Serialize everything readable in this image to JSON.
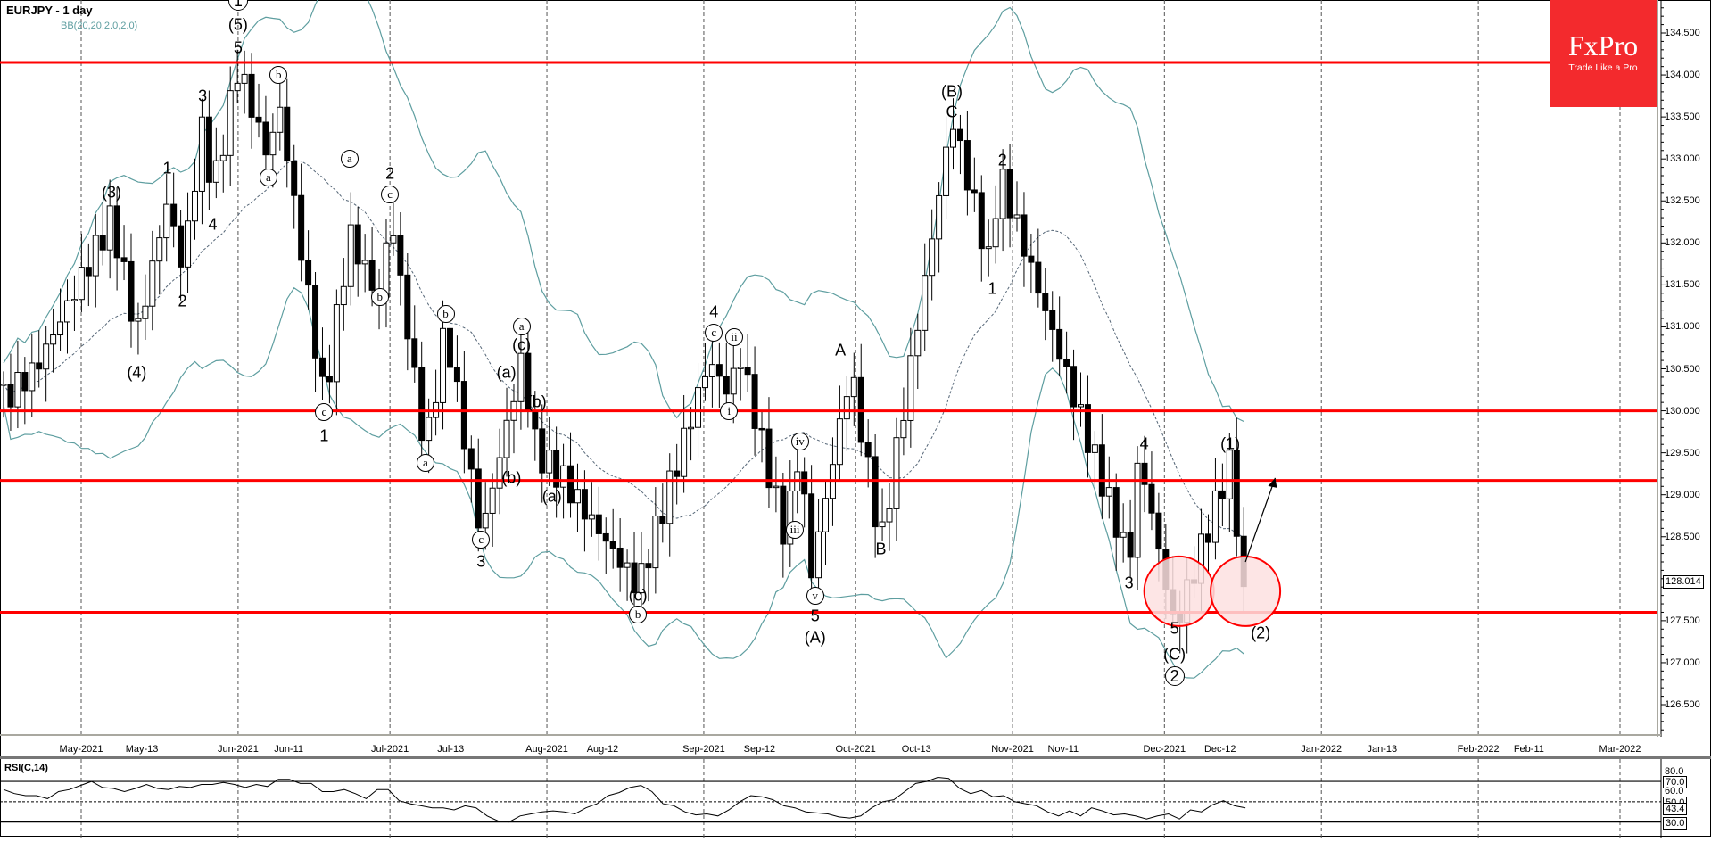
{
  "header": {
    "title": "EURJPY - 1 day",
    "indicator": "BB(20,20,2.0,2.0)"
  },
  "logo": {
    "brand": "FxPro",
    "tagline": "Trade Like a Pro",
    "color": "#f32a2d"
  },
  "price_axis": {
    "labels": [
      "134.500",
      "134.000",
      "133.500",
      "133.000",
      "132.500",
      "132.000",
      "131.500",
      "131.000",
      "130.500",
      "130.000",
      "129.500",
      "129.000",
      "128.500",
      "127.500",
      "127.000",
      "126.500"
    ],
    "last_price": "128.014"
  },
  "time_axis": {
    "labels": [
      "May-2021",
      "May-13",
      "Jun-2021",
      "Jun-11",
      "Jul-2021",
      "Jul-13",
      "Aug-2021",
      "Aug-12",
      "Sep-2021",
      "Sep-12",
      "Oct-2021",
      "Oct-13",
      "Nov-2021",
      "Nov-11",
      "Dec-2021",
      "Dec-12",
      "Jan-2022",
      "Jan-13",
      "Feb-2022",
      "Feb-11",
      "Mar-2022"
    ]
  },
  "rsi": {
    "title": "RSI(C,14)",
    "labels": [
      "80.0",
      "70.0",
      "60.0",
      "50.0",
      "43.4",
      "30.0"
    ],
    "current": "43.4"
  },
  "colors": {
    "level_line": "#ff0000",
    "bollinger": "#5e9ea0",
    "bull_candle": "#ffffff",
    "bear_candle": "#000000",
    "highlight_circle_fill": "#fde0e0"
  },
  "chart_data": [
    {
      "type": "candlestick",
      "title": "EURJPY - 1 day",
      "subtitle": "BB(20,20,2.0,2.0)",
      "xlabel": "",
      "ylabel": "",
      "ylim": [
        126.1,
        134.9
      ],
      "x_range": [
        "2021-04-20",
        "2022-03-10"
      ],
      "grid": "vertical dashed at month starts",
      "horizontal_levels": [
        134.15,
        130.0,
        129.17,
        127.6
      ],
      "last_price": 128.014,
      "key_points": [
        {
          "date": "2021-05-07",
          "price": 132.3,
          "label": "(3)"
        },
        {
          "date": "2021-05-12",
          "price": 130.9,
          "label": "(4)"
        },
        {
          "date": "2021-05-18",
          "price": 132.5,
          "label": "1"
        },
        {
          "date": "2021-05-21",
          "price": 131.7,
          "label": "2"
        },
        {
          "date": "2021-05-25",
          "price": 133.4,
          "label": "3"
        },
        {
          "date": "2021-05-27",
          "price": 132.6,
          "label": "4"
        },
        {
          "date": "2021-06-01",
          "price": 134.1,
          "label": "5 / (5) / ①"
        },
        {
          "date": "2021-06-07",
          "price": 133.0,
          "label": "a"
        },
        {
          "date": "2021-06-09",
          "price": 133.7,
          "label": "b"
        },
        {
          "date": "2021-06-18",
          "price": 130.1,
          "label": "c / 1"
        },
        {
          "date": "2021-06-23",
          "price": 132.1,
          "label": "a"
        },
        {
          "date": "2021-06-29",
          "price": 131.3,
          "label": "b"
        },
        {
          "date": "2021-07-01",
          "price": 132.4,
          "label": "c / 2"
        },
        {
          "date": "2021-07-08",
          "price": 129.5,
          "label": "a"
        },
        {
          "date": "2021-07-12",
          "price": 131.0,
          "label": "b"
        },
        {
          "date": "2021-07-19",
          "price": 128.5,
          "label": "c / 3"
        },
        {
          "date": "2021-07-27",
          "price": 130.6,
          "label": "(a) a (c)"
        },
        {
          "date": "2021-07-30",
          "price": 129.5,
          "label": "(b)"
        },
        {
          "date": "2021-08-04",
          "price": 129.2,
          "label": "(a)"
        },
        {
          "date": "2021-08-19",
          "price": 127.9,
          "label": "(c) / b"
        },
        {
          "date": "2021-09-02",
          "price": 130.6,
          "label": "c / 4"
        },
        {
          "date": "2021-09-06",
          "price": 130.2,
          "label": "i"
        },
        {
          "date": "2021-09-08",
          "price": 130.7,
          "label": "ii"
        },
        {
          "date": "2021-09-17",
          "price": 128.5,
          "label": "iii"
        },
        {
          "date": "2021-09-20",
          "price": 129.6,
          "label": "iv"
        },
        {
          "date": "2021-09-22",
          "price": 128.0,
          "label": "v / 5 / (A)"
        },
        {
          "date": "2021-09-30",
          "price": 130.5,
          "label": "A"
        },
        {
          "date": "2021-10-06",
          "price": 128.4,
          "label": "B"
        },
        {
          "date": "2021-10-20",
          "price": 133.5,
          "label": "C / (B)"
        },
        {
          "date": "2021-10-28",
          "price": 131.6,
          "label": "1"
        },
        {
          "date": "2021-10-29",
          "price": 132.9,
          "label": "2"
        },
        {
          "date": "2021-11-24",
          "price": 128.2,
          "label": "3"
        },
        {
          "date": "2021-11-26",
          "price": 129.5,
          "label": "4"
        },
        {
          "date": "2021-12-03",
          "price": 127.4,
          "label": "5 / (C) / ②"
        },
        {
          "date": "2021-12-14",
          "price": 129.4,
          "label": "(1)"
        },
        {
          "date": "2021-12-17",
          "price": 127.6,
          "label": "(2)"
        }
      ],
      "projection": {
        "from": {
          "date": "2021-12-17",
          "price": 128.2
        },
        "to": {
          "date": "2021-12-22",
          "price": 129.2
        }
      }
    },
    {
      "type": "line",
      "title": "RSI(C,14)",
      "ylim": [
        20,
        85
      ],
      "levels": [
        70,
        50,
        30
      ],
      "tick_labels": [
        80.0,
        70.0,
        60.0,
        50.0,
        30.0
      ],
      "current_value": 43.4,
      "series": [
        {
          "name": "RSI",
          "values_approx": [
            62,
            58,
            56,
            56,
            53,
            60,
            62,
            66,
            70,
            64,
            63,
            60,
            63,
            67,
            63,
            62,
            65,
            64,
            67,
            67,
            69,
            67,
            64,
            67,
            65,
            72,
            72,
            68,
            68,
            60,
            60,
            62,
            58,
            53,
            62,
            62,
            51,
            48,
            46,
            44,
            44,
            42,
            46,
            44,
            36,
            31,
            30,
            36,
            38,
            40,
            41,
            40,
            38,
            44,
            48,
            56,
            59,
            64,
            66,
            60,
            48,
            46,
            40,
            37,
            38,
            36,
            42,
            50,
            56,
            55,
            52,
            46,
            44,
            40,
            39,
            38,
            35,
            34,
            36,
            44,
            50,
            52,
            60,
            68,
            70,
            74,
            73,
            63,
            58,
            61,
            55,
            56,
            50,
            48,
            46,
            40,
            36,
            41,
            36,
            44,
            41,
            37,
            38,
            36,
            33,
            36,
            38,
            33,
            42,
            40,
            47,
            51,
            46,
            44
          ]
        }
      ]
    }
  ]
}
